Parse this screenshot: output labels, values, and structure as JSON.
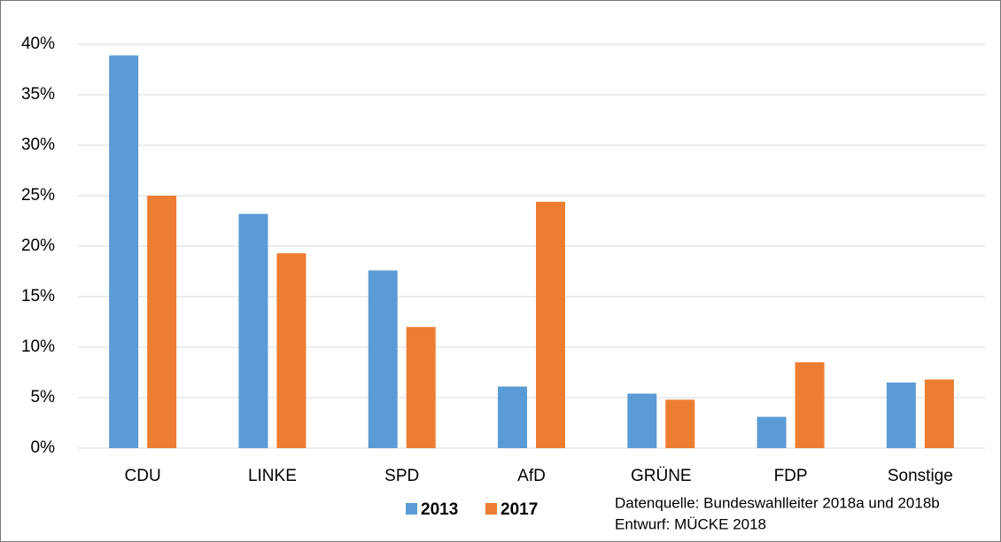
{
  "chart_data": {
    "type": "bar",
    "categories": [
      "CDU",
      "LINKE",
      "SPD",
      "AfD",
      "GRÜNE",
      "FDP",
      "Sonstige"
    ],
    "series": [
      {
        "name": "2013",
        "color": "#5b9bd5",
        "values": [
          38.9,
          23.2,
          17.6,
          6.1,
          5.4,
          3.1,
          6.5
        ]
      },
      {
        "name": "2017",
        "color": "#ed7d31",
        "values": [
          25.0,
          19.3,
          12.0,
          24.4,
          4.8,
          8.5,
          6.8
        ]
      }
    ],
    "ylim": [
      0,
      40
    ],
    "yticks": [
      {
        "value": 0,
        "label": "0%"
      },
      {
        "value": 5,
        "label": "5%"
      },
      {
        "value": 10,
        "label": "10%"
      },
      {
        "value": 15,
        "label": "15%"
      },
      {
        "value": 20,
        "label": "20%"
      },
      {
        "value": 25,
        "label": "25%"
      },
      {
        "value": 30,
        "label": "30%"
      },
      {
        "value": 35,
        "label": "35%"
      },
      {
        "value": 40,
        "label": "40%"
      }
    ],
    "grid": true,
    "legend": "bottom",
    "annotations": [
      "Datenquelle: Bundeswahlleiter 2018a und 2018b",
      "Entwurf: MÜCKE 2018"
    ]
  }
}
